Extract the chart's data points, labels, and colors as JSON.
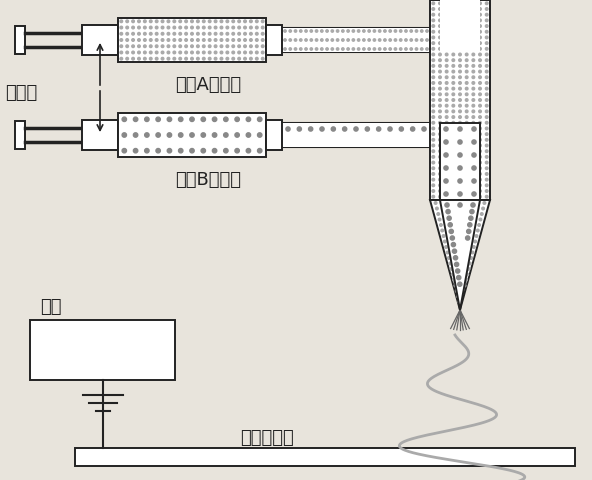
{
  "bg_color": "#e8e4dc",
  "line_color": "#222222",
  "dot_color_A": "#aaaaaa",
  "dot_color_B": "#888888",
  "label_A": "组分A纺丝液",
  "label_B": "组分B纺丝液",
  "label_pump": "注射泵",
  "label_voltage": "高压",
  "label_collector": "纺丝接收器",
  "font_size": 13
}
